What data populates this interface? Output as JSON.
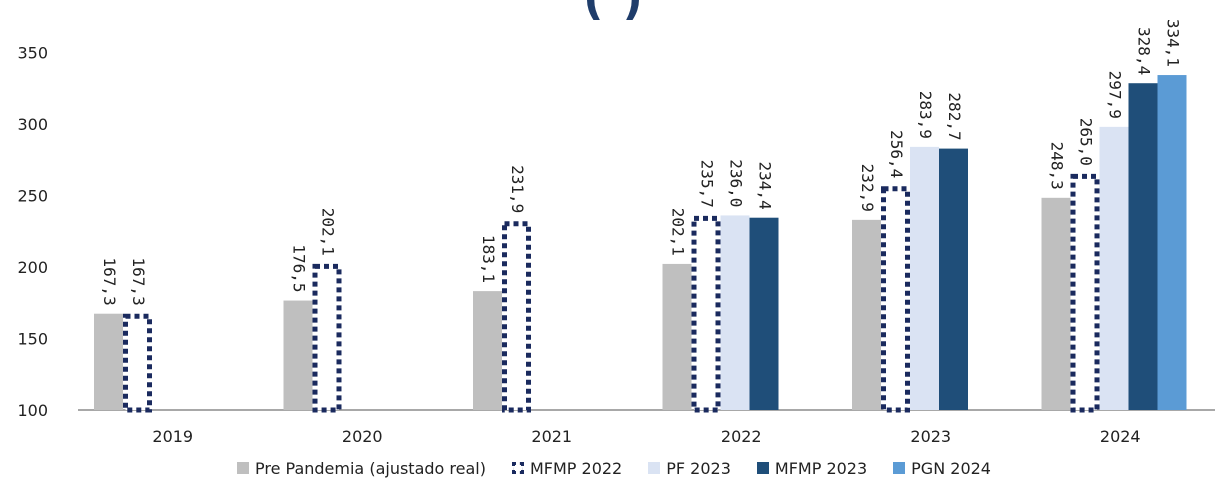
{
  "title_fragment": "(             )",
  "chart_data": {
    "type": "bar",
    "categories": [
      "2019",
      "2020",
      "2021",
      "2022",
      "2023",
      "2024"
    ],
    "ylim": [
      100,
      360
    ],
    "yticks": [
      100,
      150,
      200,
      250,
      300,
      350
    ],
    "ytick_labels": [
      "100",
      "150",
      "200",
      "250",
      "300",
      "350"
    ],
    "grid": false,
    "legend_position": "bottom",
    "series": [
      {
        "name": "Pre Pandemia (ajustado real)",
        "color": "#bfbfbf",
        "style": "solid",
        "values": [
          167.3,
          176.5,
          183.1,
          202.1,
          232.9,
          248.3
        ],
        "labels": [
          "167,3",
          "176,5",
          "183,1",
          "202,1",
          "232,9",
          "248,3"
        ]
      },
      {
        "name": "MFMP 2022",
        "color": "#1a2a5e",
        "style": "dotted",
        "values": [
          167.3,
          202.1,
          231.9,
          235.7,
          256.4,
          265.0
        ],
        "labels": [
          "167,3",
          "202,1",
          "231,9",
          "235,7",
          "256,4",
          "265,0"
        ]
      },
      {
        "name": "PF 2023",
        "color": "#dae3f3",
        "style": "solid",
        "values": [
          null,
          null,
          null,
          236.0,
          283.9,
          297.9
        ],
        "labels": [
          null,
          null,
          null,
          "236,0",
          "283,9",
          "297,9"
        ]
      },
      {
        "name": "MFMP 2023",
        "color": "#1f4e79",
        "style": "solid",
        "values": [
          null,
          null,
          null,
          234.4,
          282.7,
          328.4
        ],
        "labels": [
          null,
          null,
          null,
          "234,4",
          "282,7",
          "328,4"
        ]
      },
      {
        "name": "PGN 2024",
        "color": "#5b9bd5",
        "style": "solid",
        "values": [
          null,
          null,
          null,
          null,
          null,
          334.1
        ],
        "labels": [
          null,
          null,
          null,
          null,
          null,
          "334,1"
        ]
      }
    ]
  }
}
